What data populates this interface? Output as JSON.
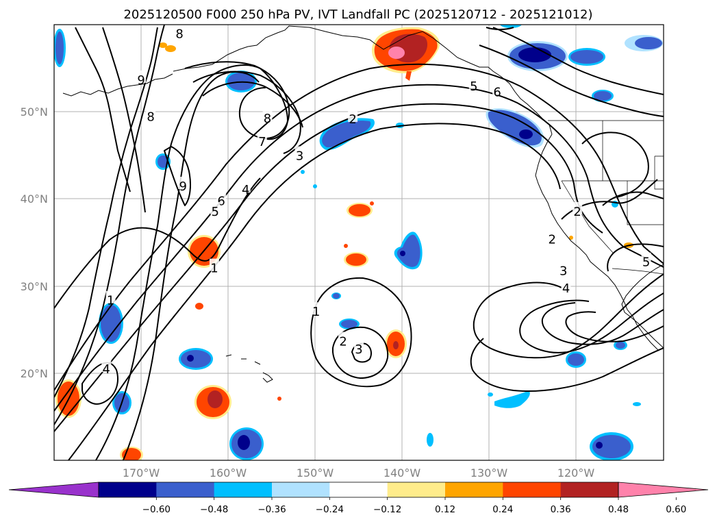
{
  "title": "2025120500 F000 250 hPa PV, IVT Landfall PC (2025120712 - 2025121012)",
  "map": {
    "lat_range": [
      10,
      60
    ],
    "lon_range": [
      -180,
      -110
    ],
    "lat_ticks": [
      {
        "value": 20,
        "label": "20°N"
      },
      {
        "value": 30,
        "label": "30°N"
      },
      {
        "value": 40,
        "label": "40°N"
      },
      {
        "value": 50,
        "label": "50°N"
      }
    ],
    "lon_ticks": [
      {
        "value": -170,
        "label": "170°W"
      },
      {
        "value": -160,
        "label": "160°W"
      },
      {
        "value": -150,
        "label": "150°W"
      },
      {
        "value": -140,
        "label": "140°W"
      },
      {
        "value": -130,
        "label": "130°W"
      },
      {
        "value": -120,
        "label": "120°W"
      }
    ],
    "contour_labels": [
      {
        "text": "8",
        "lon": -165.6,
        "lat": 59.1
      },
      {
        "text": "9",
        "lon": -170.0,
        "lat": 53.8
      },
      {
        "text": "8",
        "lon": -168.9,
        "lat": 49.6
      },
      {
        "text": "8",
        "lon": -155.5,
        "lat": 49.4
      },
      {
        "text": "7",
        "lon": -156.1,
        "lat": 46.7
      },
      {
        "text": "3",
        "lon": -151.8,
        "lat": 45.1
      },
      {
        "text": "2",
        "lon": -145.7,
        "lat": 49.3
      },
      {
        "text": "9",
        "lon": -165.2,
        "lat": 41.6
      },
      {
        "text": "6",
        "lon": -160.8,
        "lat": 39.9
      },
      {
        "text": "5",
        "lon": -161.5,
        "lat": 38.7
      },
      {
        "text": "4",
        "lon": -158.0,
        "lat": 41.2
      },
      {
        "text": "1",
        "lon": -161.6,
        "lat": 32.2
      },
      {
        "text": "1",
        "lon": -173.5,
        "lat": 28.5
      },
      {
        "text": "4",
        "lon": -174.0,
        "lat": 20.6
      },
      {
        "text": "1",
        "lon": -149.9,
        "lat": 27.2
      },
      {
        "text": "2",
        "lon": -146.8,
        "lat": 23.8
      },
      {
        "text": "3",
        "lon": -145.0,
        "lat": 22.9
      },
      {
        "text": "5",
        "lon": -131.8,
        "lat": 53.1
      },
      {
        "text": "6",
        "lon": -129.1,
        "lat": 52.4
      },
      {
        "text": "2",
        "lon": -119.9,
        "lat": 38.7
      },
      {
        "text": "2",
        "lon": -122.8,
        "lat": 35.5
      },
      {
        "text": "5",
        "lon": -112.0,
        "lat": 32.9
      },
      {
        "text": "3",
        "lon": -121.5,
        "lat": 31.9
      },
      {
        "text": "4",
        "lon": -121.2,
        "lat": 29.9
      }
    ]
  },
  "colorbar": {
    "colors": [
      "#9932cc",
      "#00008b",
      "#3a5fcd",
      "#00bfff",
      "#b0e2ff",
      "#ffffff",
      "#ffec8b",
      "#ffa500",
      "#ff4500",
      "#b22222",
      "#ff82ab"
    ],
    "tick_labels": [
      "−0.60",
      "−0.48",
      "−0.36",
      "−0.24",
      "−0.12",
      "0.12",
      "0.24",
      "0.36",
      "0.48",
      "0.60"
    ]
  },
  "colors": {
    "grid": "#b0b0b0",
    "tick_text": "#808080"
  }
}
